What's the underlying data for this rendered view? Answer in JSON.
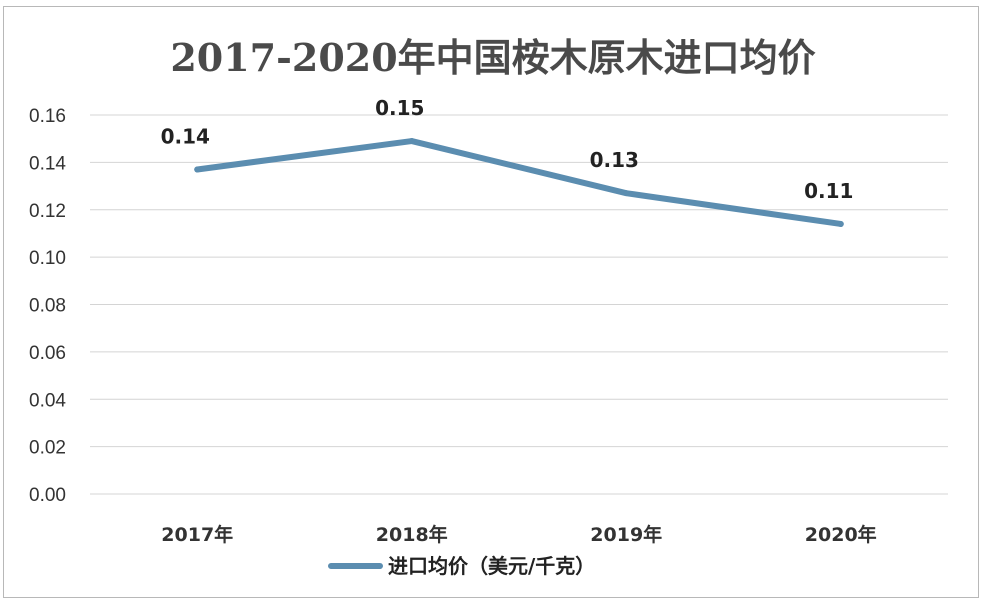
{
  "chart_data": {
    "type": "line",
    "title": "2017-2020年中国桉木原木进口均价",
    "categories": [
      "2017年",
      "2018年",
      "2019年",
      "2020年"
    ],
    "series": [
      {
        "name": "进口均价（美元/千克）",
        "values": [
          0.137,
          0.149,
          0.127,
          0.114
        ],
        "labels": [
          "0.14",
          "0.15",
          "0.13",
          "0.11"
        ],
        "color": "#5b8db0"
      }
    ],
    "ylim": [
      0,
      0.16
    ],
    "yticks": [
      "0.00",
      "0.02",
      "0.04",
      "0.06",
      "0.08",
      "0.10",
      "0.12",
      "0.14",
      "0.16"
    ],
    "ytick_values": [
      0,
      0.02,
      0.04,
      0.06,
      0.08,
      0.1,
      0.12,
      0.14,
      0.16
    ],
    "grid": true,
    "legend_position": "bottom"
  }
}
